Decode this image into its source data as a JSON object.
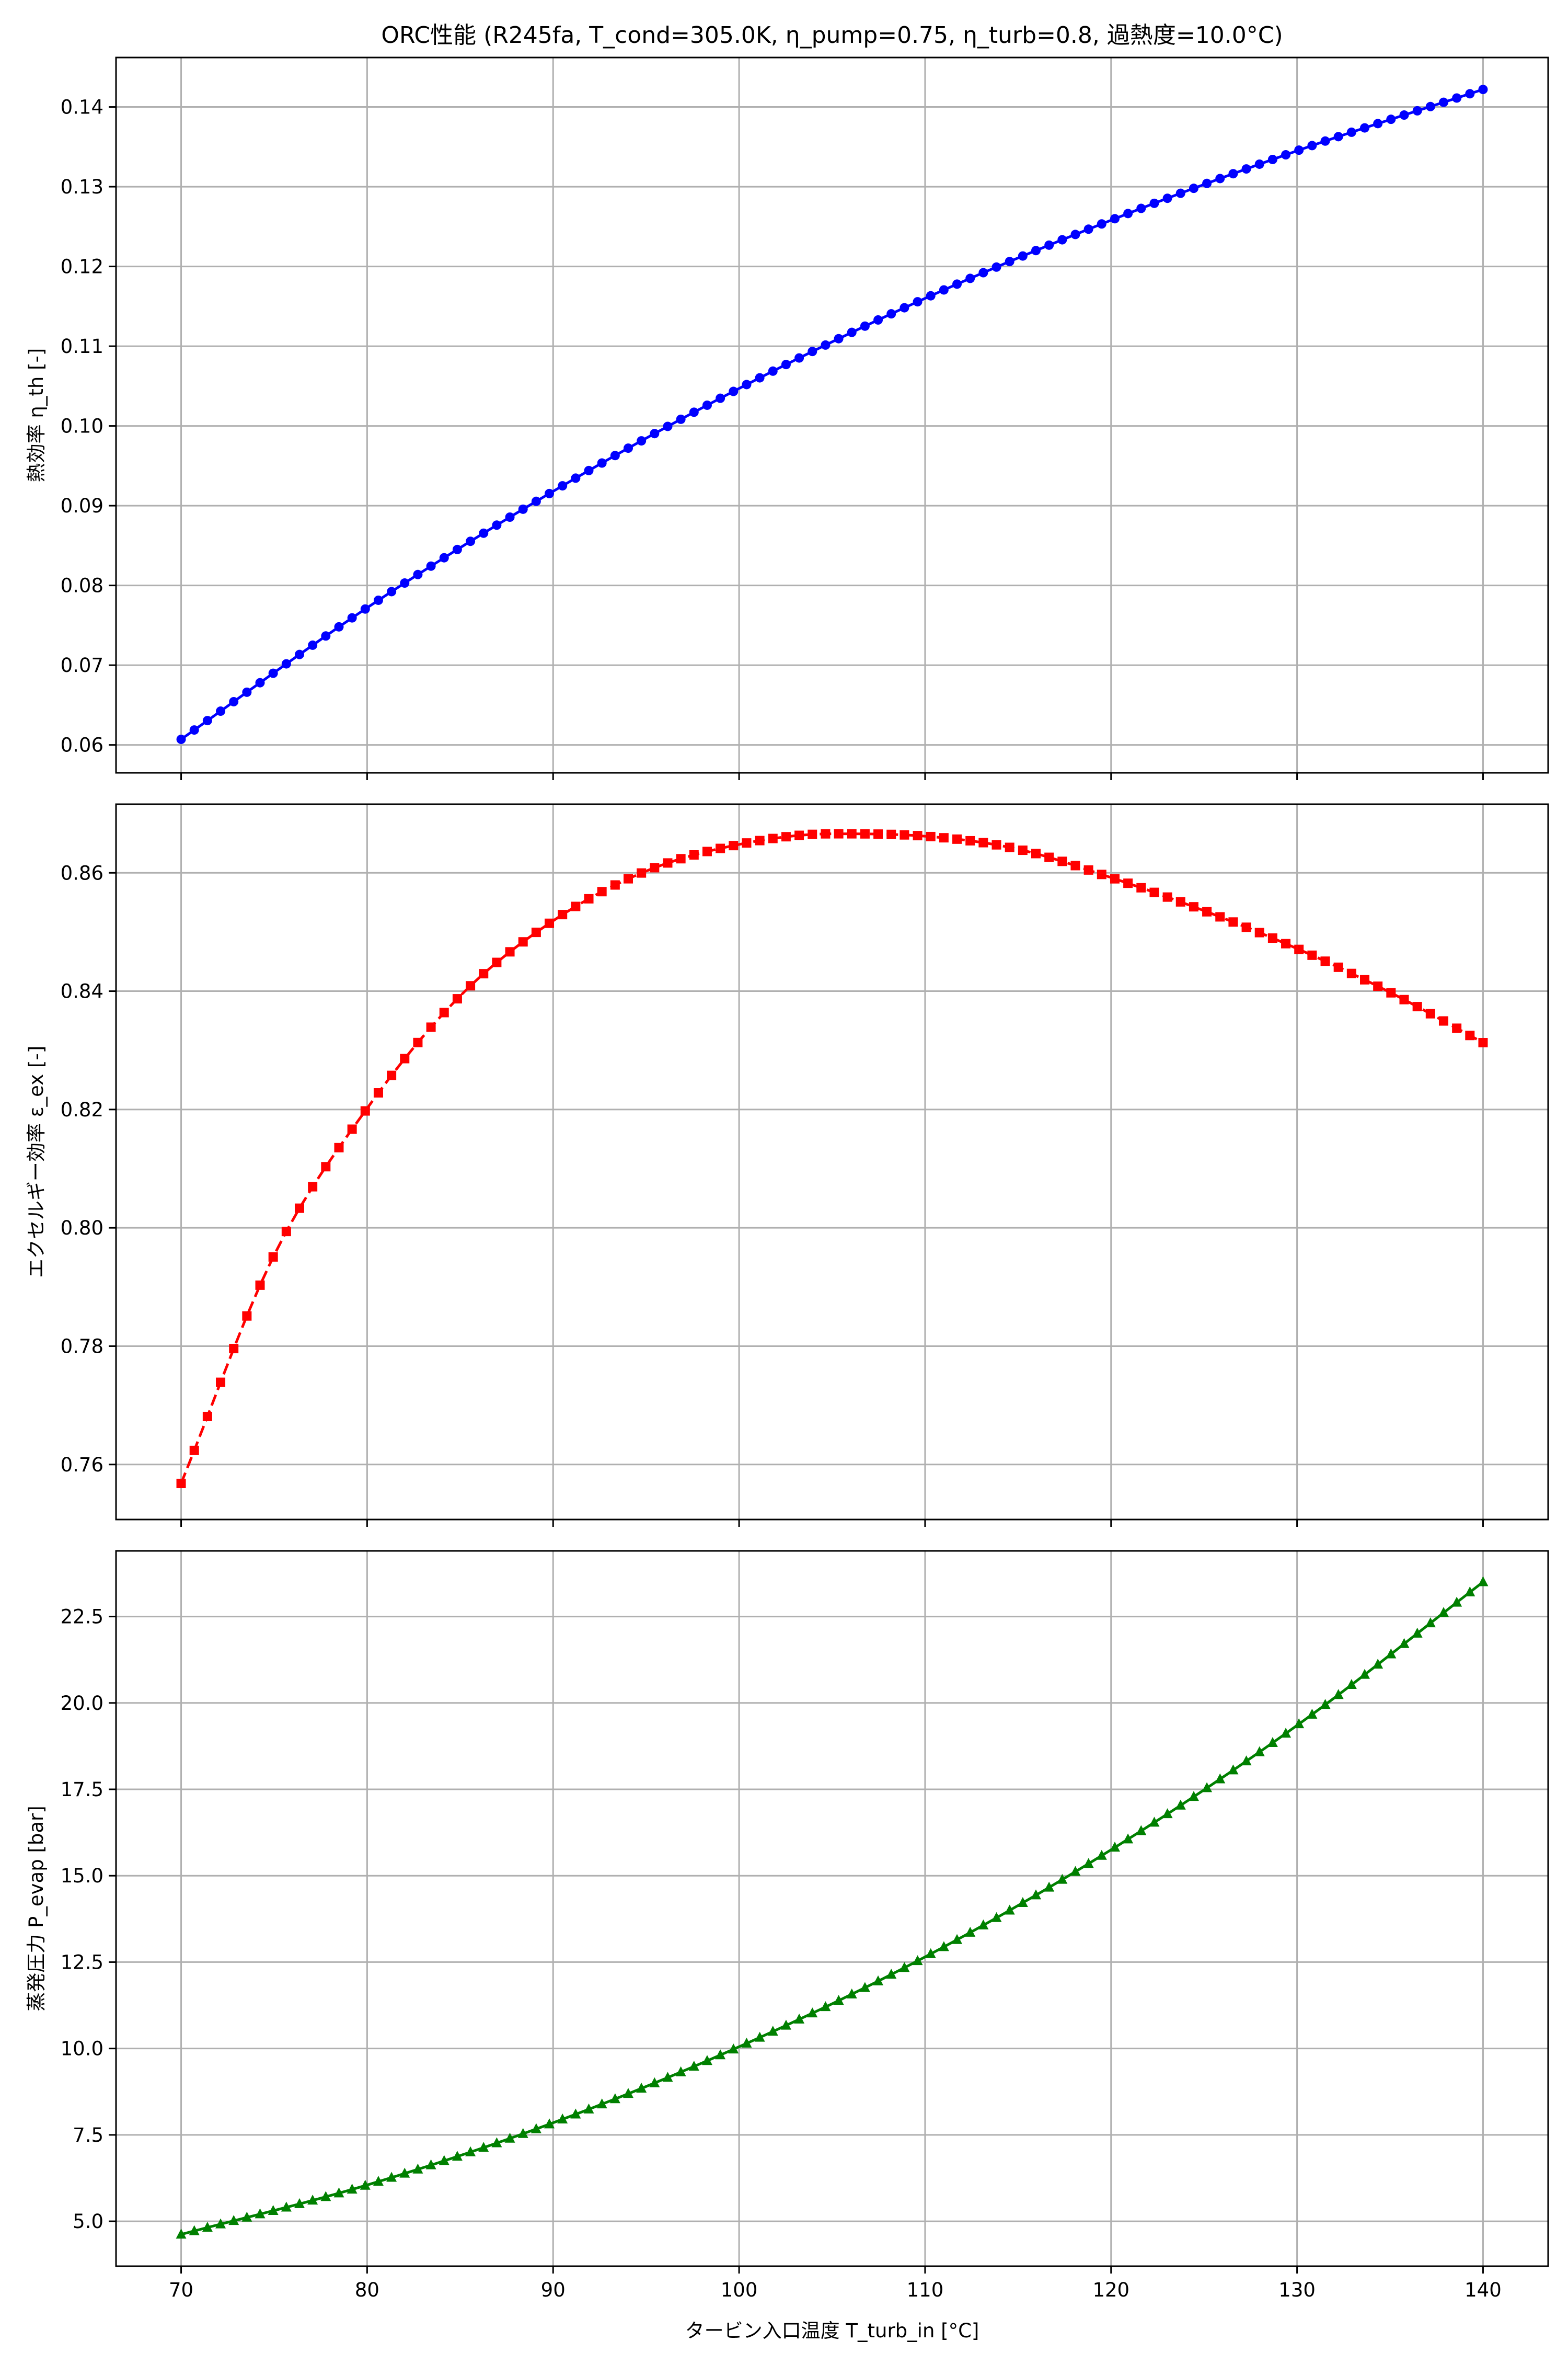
{
  "figure": {
    "title": "ORC性能 (R245fa, T_cond=305.0K, η_pump=0.75, η_turb=0.8, 過熱度=10.0°C)",
    "xlabel": "タービン入口温度 T_turb_in [°C]"
  },
  "chart_data": [
    {
      "type": "line",
      "title": "ORC性能 (R245fa, T_cond=305.0K, η_pump=0.75, η_turb=0.8, 過熱度=10.0°C)",
      "xlabel": "",
      "ylabel": "熱効率 η_th [-]",
      "xlim": [
        66.5,
        143.5
      ],
      "ylim": [
        0.0565,
        0.1462
      ],
      "x_ticks": [
        70,
        80,
        90,
        100,
        110,
        120,
        130,
        140
      ],
      "y_ticks": [
        0.06,
        0.07,
        0.08,
        0.09,
        0.1,
        0.11,
        0.12,
        0.13,
        0.14
      ],
      "y_tick_labels": [
        "0.06",
        "0.07",
        "0.08",
        "0.09",
        "0.10",
        "0.11",
        "0.12",
        "0.13",
        "0.14"
      ],
      "grid": true,
      "series": [
        {
          "color": "#0000ff",
          "marker": "circle",
          "linestyle": "solid",
          "x_start": 70,
          "x_end": 140,
          "points": 100,
          "x": [
            70,
            80,
            90,
            100,
            110,
            120,
            130,
            140
          ],
          "values": [
            0.0607,
            0.0772,
            0.0918,
            0.1047,
            0.116,
            0.1258,
            0.1345,
            0.1422
          ]
        }
      ]
    },
    {
      "type": "line",
      "title": "",
      "xlabel": "",
      "ylabel": "エクセルギー効率 ε_ex [-]",
      "xlim": [
        66.5,
        143.5
      ],
      "ylim": [
        0.7507,
        0.8716
      ],
      "x_ticks": [
        70,
        80,
        90,
        100,
        110,
        120,
        130,
        140
      ],
      "y_ticks": [
        0.76,
        0.78,
        0.8,
        0.82,
        0.84,
        0.86
      ],
      "y_tick_labels": [
        "0.76",
        "0.78",
        "0.80",
        "0.82",
        "0.84",
        "0.86"
      ],
      "grid": true,
      "series": [
        {
          "color": "#ff0000",
          "marker": "square",
          "linestyle": "dashed",
          "x_start": 70,
          "x_end": 140,
          "points": 100,
          "x": [
            70,
            75,
            80,
            85,
            90,
            95,
            100,
            105,
            110,
            115,
            120,
            125,
            130,
            135,
            140
          ],
          "values": [
            0.7568,
            0.7954,
            0.8202,
            0.8392,
            0.8519,
            0.8603,
            0.8648,
            0.8666,
            0.8662,
            0.864,
            0.8592,
            0.8536,
            0.8472,
            0.8398,
            0.8313
          ]
        }
      ]
    },
    {
      "type": "line",
      "title": "",
      "xlabel": "タービン入口温度 T_turb_in [°C]",
      "ylabel": "蒸発圧力 P_evap [bar]",
      "xlim": [
        66.5,
        143.5
      ],
      "ylim": [
        3.7,
        24.4
      ],
      "x_ticks": [
        70,
        80,
        90,
        100,
        110,
        120,
        130,
        140
      ],
      "y_ticks": [
        5.0,
        7.5,
        10.0,
        12.5,
        15.0,
        17.5,
        20.0,
        22.5
      ],
      "y_tick_labels": [
        "5.0",
        "7.5",
        "10.0",
        "12.5",
        "15.0",
        "17.5",
        "20.0",
        "22.5"
      ],
      "grid": true,
      "series": [
        {
          "color": "#008000",
          "marker": "triangle",
          "linestyle": "solid",
          "x_start": 70,
          "x_end": 140,
          "points": 100,
          "x": [
            70,
            80,
            90,
            100,
            110,
            120,
            130,
            140
          ],
          "values": [
            4.62,
            6.05,
            7.85,
            10.05,
            12.65,
            15.75,
            19.35,
            23.5
          ]
        }
      ]
    }
  ]
}
